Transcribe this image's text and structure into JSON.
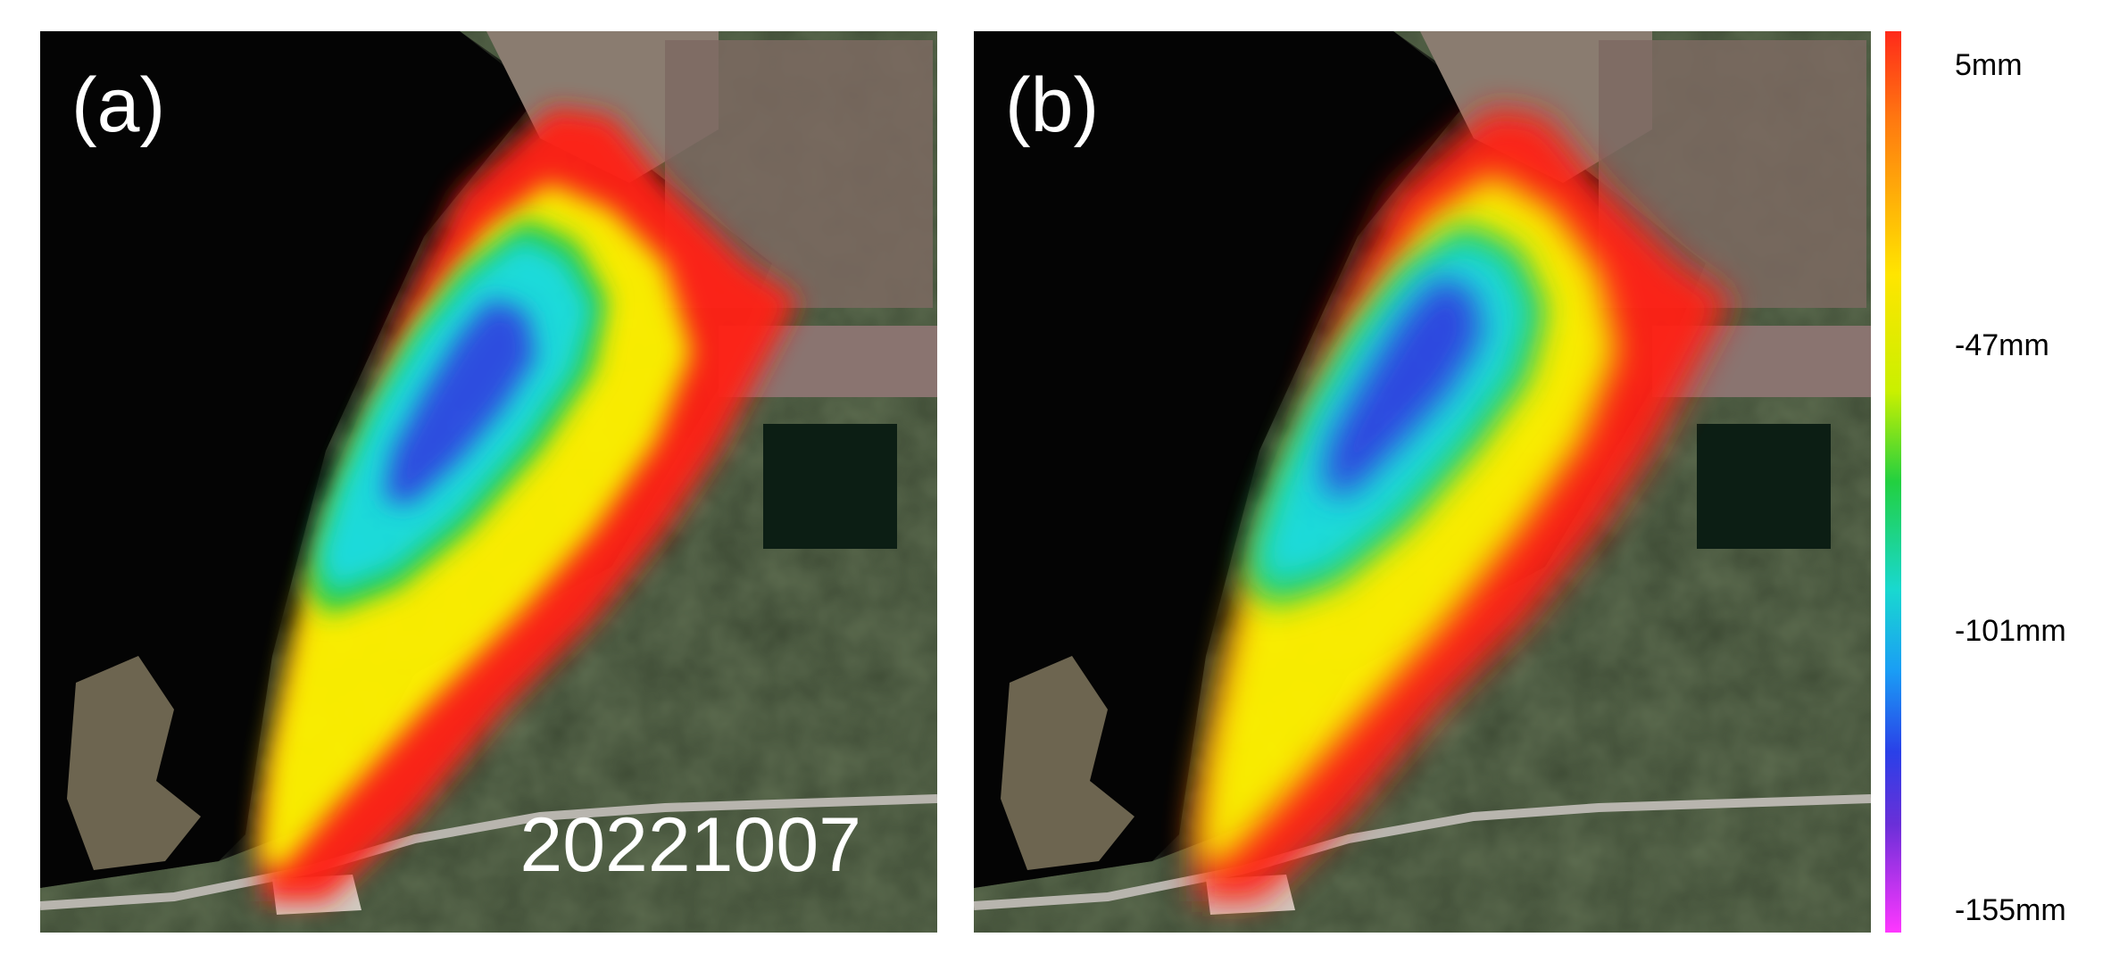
{
  "panels": [
    {
      "label": "(a)",
      "date_text": "20221007"
    },
    {
      "label": "(b)"
    }
  ],
  "colorbar": {
    "ticks": [
      "5mm",
      "-47mm",
      "-101mm",
      "-155mm"
    ],
    "colors": [
      "#ff2a1a",
      "#ffe500",
      "#22d040",
      "#19d8d0",
      "#2a40e8",
      "#ff37ff"
    ]
  },
  "map_layers": {
    "background": "satellite imagery",
    "overlay": "deformation field (mm)"
  }
}
